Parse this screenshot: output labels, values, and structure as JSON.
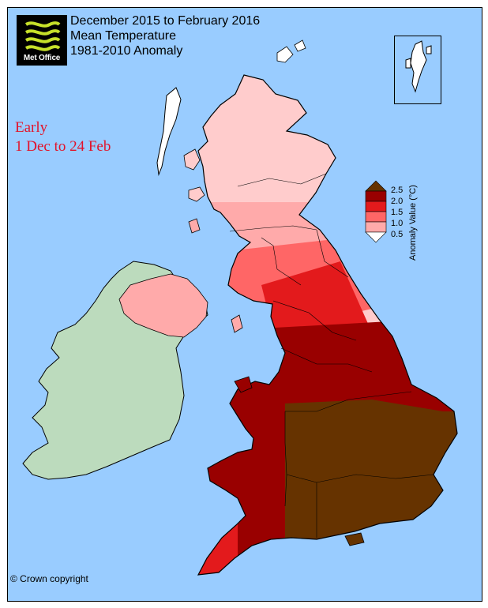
{
  "branding": {
    "logo_text": "Met Office",
    "logo_icon": "met-office-waves-icon"
  },
  "title": {
    "line1": "December 2015 to February 2016",
    "line2": "Mean Temperature",
    "line3": "1981-2010 Anomaly"
  },
  "period": {
    "line1": "Early",
    "line2": "1 Dec to 24 Feb"
  },
  "legend": {
    "title": "Anomaly Value (°C)",
    "ticks": [
      "2.5",
      "2.0",
      "1.5",
      "1.0",
      "0.5"
    ],
    "classes": [
      {
        "range": "above 2.5",
        "color": "#663300"
      },
      {
        "range": "2.0 to 2.5",
        "color": "#990000"
      },
      {
        "range": "1.5 to 2.0",
        "color": "#e31a1c"
      },
      {
        "range": "1.0 to 1.5",
        "color": "#ff6666"
      },
      {
        "range": "0.5 to 1.0",
        "color": "#ffaaaa"
      },
      {
        "range": "below 0.5",
        "color": "#ffffff"
      }
    ]
  },
  "colors": {
    "sea": "#99ccff",
    "ireland": "#bcdbbd",
    "boundary": "#000000",
    "title_red": "#e2132b"
  },
  "copyright": "© Crown copyright"
}
